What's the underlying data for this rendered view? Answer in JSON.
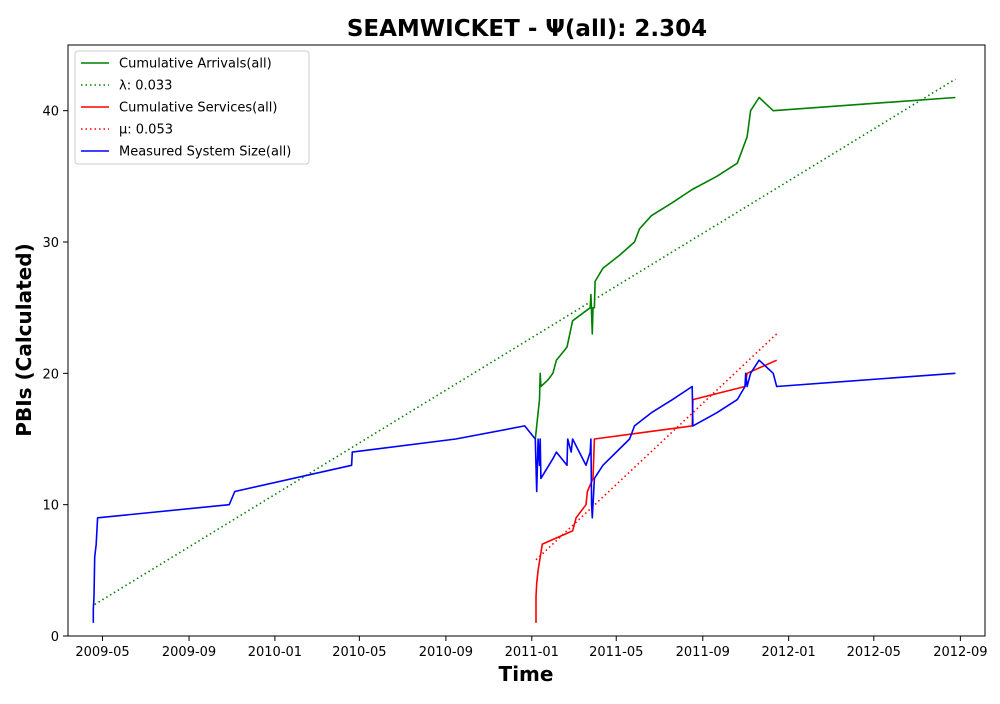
{
  "chart_data": {
    "type": "line",
    "title": "SEAMWICKET -  Ψ(all): 2.304",
    "xlabel": "Time",
    "ylabel": "PBIs (Calculated)",
    "ylim": [
      0,
      45
    ],
    "xlim": [
      "2009-03-13",
      "2012-10-06"
    ],
    "yticks": [
      0,
      10,
      20,
      30,
      40
    ],
    "xticks": [
      "2009-05",
      "2009-09",
      "2010-01",
      "2010-05",
      "2010-09",
      "2011-01",
      "2011-05",
      "2011-09",
      "2012-01",
      "2012-05",
      "2012-09"
    ],
    "grid": false,
    "legend_position": "top-left",
    "series": [
      {
        "name": "Cumulative Arrivals(all)",
        "style": "solid",
        "color": "#008000",
        "points": [
          [
            "2011-01-06",
            15
          ],
          [
            "2011-01-08",
            16
          ],
          [
            "2011-01-10",
            17
          ],
          [
            "2011-01-12",
            18
          ],
          [
            "2011-01-13",
            20
          ],
          [
            "2011-01-14",
            19
          ],
          [
            "2011-01-24",
            19.5
          ],
          [
            "2011-01-31",
            20
          ],
          [
            "2011-02-05",
            21
          ],
          [
            "2011-02-20",
            22
          ],
          [
            "2011-02-28",
            24
          ],
          [
            "2011-03-25",
            25
          ],
          [
            "2011-03-26",
            26
          ],
          [
            "2011-03-28",
            23
          ],
          [
            "2011-03-29",
            25
          ],
          [
            "2011-03-31",
            25
          ],
          [
            "2011-04-01",
            27
          ],
          [
            "2011-04-12",
            28
          ],
          [
            "2011-05-06",
            29
          ],
          [
            "2011-05-27",
            30
          ],
          [
            "2011-06-03",
            31
          ],
          [
            "2011-06-20",
            32
          ],
          [
            "2011-07-20",
            33
          ],
          [
            "2011-08-17",
            34
          ],
          [
            "2011-09-21",
            35
          ],
          [
            "2011-10-20",
            36
          ],
          [
            "2011-11-03",
            38
          ],
          [
            "2011-11-08",
            40
          ],
          [
            "2011-11-20",
            41
          ],
          [
            "2011-12-10",
            40
          ],
          [
            "2012-08-25",
            41
          ]
        ]
      },
      {
        "name": "λ: 0.033",
        "style": "dotted",
        "color": "#008000",
        "points": [
          [
            "2009-04-20",
            2.4
          ],
          [
            "2012-08-25",
            42.4
          ]
        ]
      },
      {
        "name": "Cumulative Services(all)",
        "style": "solid",
        "color": "#ff0000",
        "points": [
          [
            "2011-01-07",
            1
          ],
          [
            "2011-01-07",
            3
          ],
          [
            "2011-01-08",
            4
          ],
          [
            "2011-01-10",
            5
          ],
          [
            "2011-01-13",
            6
          ],
          [
            "2011-01-16",
            7
          ],
          [
            "2011-02-28",
            8
          ],
          [
            "2011-03-05",
            9
          ],
          [
            "2011-03-19",
            10
          ],
          [
            "2011-03-21",
            11
          ],
          [
            "2011-03-29",
            12
          ],
          [
            "2011-03-31",
            15
          ],
          [
            "2011-08-17",
            16
          ],
          [
            "2011-08-18",
            18
          ],
          [
            "2011-10-31",
            19
          ],
          [
            "2011-11-03",
            20
          ],
          [
            "2011-12-15",
            21
          ]
        ]
      },
      {
        "name": "μ: 0.053",
        "style": "dotted",
        "color": "#ff0000",
        "points": [
          [
            "2011-01-07",
            5.8
          ],
          [
            "2011-12-15",
            23.0
          ]
        ]
      },
      {
        "name": "Measured System Size(all)",
        "style": "solid",
        "color": "#0000ff",
        "points": [
          [
            "2009-04-18",
            1
          ],
          [
            "2009-04-18",
            2
          ],
          [
            "2009-04-19",
            3
          ],
          [
            "2009-04-20",
            6
          ],
          [
            "2009-04-22",
            7
          ],
          [
            "2009-04-24",
            9
          ],
          [
            "2009-10-28",
            10
          ],
          [
            "2009-11-05",
            11
          ],
          [
            "2010-04-20",
            13
          ],
          [
            "2010-04-21",
            14
          ],
          [
            "2010-09-15",
            15
          ],
          [
            "2010-12-22",
            16
          ],
          [
            "2011-01-06",
            15
          ],
          [
            "2011-01-07",
            13
          ],
          [
            "2011-01-08",
            11
          ],
          [
            "2011-01-10",
            15
          ],
          [
            "2011-01-12",
            13
          ],
          [
            "2011-01-13",
            15
          ],
          [
            "2011-01-14",
            12
          ],
          [
            "2011-01-31",
            13.5
          ],
          [
            "2011-02-05",
            14
          ],
          [
            "2011-02-20",
            13
          ],
          [
            "2011-02-21",
            15
          ],
          [
            "2011-02-26",
            14
          ],
          [
            "2011-02-28",
            15
          ],
          [
            "2011-03-19",
            13
          ],
          [
            "2011-03-25",
            14
          ],
          [
            "2011-03-26",
            15
          ],
          [
            "2011-03-27",
            10
          ],
          [
            "2011-03-28",
            9
          ],
          [
            "2011-03-29",
            10
          ],
          [
            "2011-03-31",
            12
          ],
          [
            "2011-04-12",
            13
          ],
          [
            "2011-05-20",
            15
          ],
          [
            "2011-05-27",
            16
          ],
          [
            "2011-06-20",
            17
          ],
          [
            "2011-07-20",
            18
          ],
          [
            "2011-08-17",
            19
          ],
          [
            "2011-08-18",
            16
          ],
          [
            "2011-09-21",
            17
          ],
          [
            "2011-10-20",
            18
          ],
          [
            "2011-10-31",
            19
          ],
          [
            "2011-11-01",
            20
          ],
          [
            "2011-11-03",
            19
          ],
          [
            "2011-11-08",
            20
          ],
          [
            "2011-11-20",
            21
          ],
          [
            "2011-12-10",
            20
          ],
          [
            "2011-12-15",
            19
          ],
          [
            "2012-08-25",
            20
          ]
        ]
      }
    ]
  }
}
